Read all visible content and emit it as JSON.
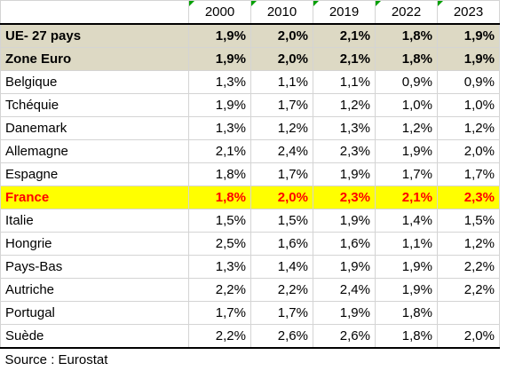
{
  "years": [
    "2000",
    "2010",
    "2019",
    "2022",
    "2023"
  ],
  "aggregates": [
    {
      "country": "UE- 27 pays",
      "values": [
        "1,9%",
        "2,0%",
        "2,1%",
        "1,8%",
        "1,9%"
      ]
    },
    {
      "country": "Zone Euro",
      "values": [
        "1,9%",
        "2,0%",
        "2,1%",
        "1,8%",
        "1,9%"
      ]
    }
  ],
  "countries": [
    {
      "country": "Belgique",
      "values": [
        "1,3%",
        "1,1%",
        "1,1%",
        "0,9%",
        "0,9%"
      ]
    },
    {
      "country": "Tchéquie",
      "values": [
        "1,9%",
        "1,7%",
        "1,2%",
        "1,0%",
        "1,0%"
      ]
    },
    {
      "country": "Danemark",
      "values": [
        "1,3%",
        "1,2%",
        "1,3%",
        "1,2%",
        "1,2%"
      ]
    },
    {
      "country": "Allemagne",
      "values": [
        "2,1%",
        "2,4%",
        "2,3%",
        "1,9%",
        "2,0%"
      ]
    },
    {
      "country": "Espagne",
      "values": [
        "1,8%",
        "1,7%",
        "1,9%",
        "1,7%",
        "1,7%"
      ]
    },
    {
      "country": "France",
      "values": [
        "1,8%",
        "2,0%",
        "2,3%",
        "2,1%",
        "2,3%"
      ],
      "highlight": true
    },
    {
      "country": "Italie",
      "values": [
        "1,5%",
        "1,5%",
        "1,9%",
        "1,4%",
        "1,5%"
      ]
    },
    {
      "country": "Hongrie",
      "values": [
        "2,5%",
        "1,6%",
        "1,6%",
        "1,1%",
        "1,2%"
      ]
    },
    {
      "country": "Pays-Bas",
      "values": [
        "1,3%",
        "1,4%",
        "1,9%",
        "1,9%",
        "2,2%"
      ]
    },
    {
      "country": "Autriche",
      "values": [
        "2,2%",
        "2,2%",
        "2,4%",
        "1,9%",
        "2,2%"
      ]
    },
    {
      "country": "Portugal",
      "values": [
        "1,7%",
        "1,7%",
        "1,9%",
        "1,8%",
        ""
      ]
    },
    {
      "country": "Suède",
      "values": [
        "2,2%",
        "2,6%",
        "2,6%",
        "1,8%",
        "2,0%"
      ]
    }
  ],
  "colors": {
    "aggregate_bg": "#ddd9c4",
    "highlight_bg": "#ffff00",
    "highlight_text": "#ff0000",
    "indicator": "#00a000"
  },
  "source": "Source : Eurostat"
}
